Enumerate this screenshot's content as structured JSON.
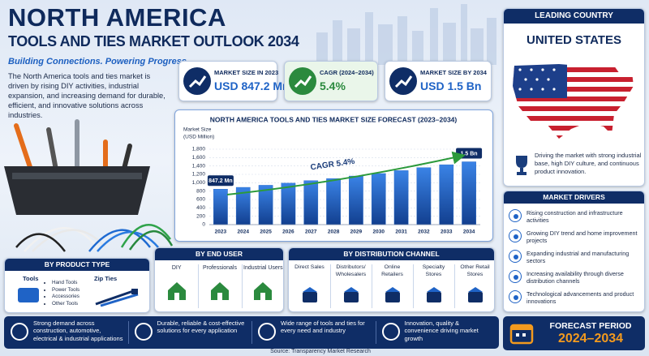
{
  "header": {
    "title": "NORTH AMERICA",
    "subtitle": "TOOLS AND TIES MARKET OUTLOOK 2034",
    "tagline": "Building Connections. Powering Progress.",
    "description": "The North America tools and ties market is driven by rising DIY activities, industrial expansion, and increasing demand for durable, efficient, and innovative solutions across industries."
  },
  "kpis": [
    {
      "label": "MARKET SIZE IN 2023",
      "value": "USD 847.2 Mn"
    },
    {
      "label": "CAGR (2024–2034)",
      "value": "5.4%"
    },
    {
      "label": "MARKET SIZE BY 2034",
      "value": "USD 1.5 Bn"
    }
  ],
  "chart_data": {
    "type": "bar",
    "title": "NORTH AMERICA TOOLS AND TIES MARKET SIZE FORECAST (2023–2034)",
    "ylabel": "Market Size",
    "ylabel_unit": "(USD Million)",
    "categories": [
      "2023",
      "2024",
      "2025",
      "2026",
      "2027",
      "2028",
      "2029",
      "2030",
      "2031",
      "2032",
      "2033",
      "2034"
    ],
    "values": [
      847.2,
      890,
      940,
      990,
      1050,
      1100,
      1160,
      1220,
      1290,
      1360,
      1430,
      1500
    ],
    "value_labels": [
      "847.2 Mn",
      null,
      null,
      null,
      null,
      null,
      null,
      null,
      null,
      null,
      null,
      "1.5 Bn"
    ],
    "color": "#1f63c6",
    "ylim": [
      0,
      1800
    ],
    "yticks": [
      0,
      200,
      400,
      600,
      800,
      {
        "value": 1000,
        "label": "1,000"
      },
      {
        "value": 1200,
        "label": "1,200"
      },
      {
        "value": 1400,
        "label": "1,400"
      },
      {
        "value": 1600,
        "label": "1,600"
      },
      {
        "value": 1800,
        "label": "1,800"
      }
    ],
    "grid": true,
    "annotation": "CAGR 5.4%"
  },
  "leading_country": {
    "heading": "LEADING COUNTRY",
    "country": "UNITED STATES",
    "note": "Driving the market with strong industrial base, high DIY culture, and continuous product innovation."
  },
  "market_drivers": {
    "heading": "MARKET DRIVERS",
    "items": [
      "Rising construction and infrastructure activities",
      "Growing DIY trend and home improvement projects",
      "Expanding industrial and manufacturing sectors",
      "Increasing availability through diverse distribution channels",
      "Technological advancements and product innovations"
    ]
  },
  "product_type": {
    "heading": "BY PRODUCT TYPE",
    "groups": [
      {
        "name": "Tools",
        "items": [
          "Hand Tools",
          "Power Tools",
          "Accessories",
          "Other Tools"
        ]
      },
      {
        "name": "Zip Ties"
      }
    ]
  },
  "end_user": {
    "heading": "BY END USER",
    "items": [
      "DIY",
      "Professionals",
      "Industrial Users"
    ]
  },
  "distribution_channel": {
    "heading": "BY DISTRIBUTION CHANNEL",
    "items": [
      "Direct Sales",
      "Distributors/ Wholesalers",
      "Online Retailers",
      "Specialty Stores",
      "Other Retail Stores"
    ]
  },
  "highlights": [
    "Strong demand across construction, automotive, electrical & industrial applications",
    "Durable, reliable & cost-effective solutions for every application",
    "Wide range of tools and ties for every need and industry",
    "Innovation, quality & convenience driving market growth"
  ],
  "forecast_period": {
    "label": "FORECAST PERIOD",
    "value": "2024–2034"
  },
  "source": "Source: Transparency Market Research"
}
